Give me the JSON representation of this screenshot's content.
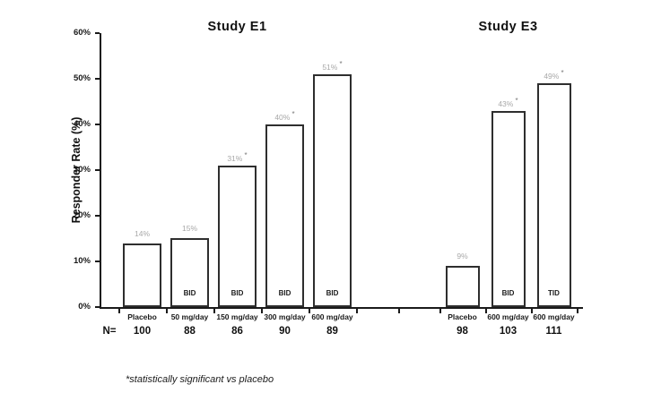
{
  "figure": {
    "ylabel": "Responder Rate (%)",
    "n_prefix": "N=",
    "footnote": "*statistically significant vs placebo"
  },
  "chart_data": {
    "type": "bar",
    "title": "",
    "ylabel": "Responder Rate (%)",
    "xlabel": "",
    "ylim": [
      0,
      60
    ],
    "ytick_step": 10,
    "ytick_suffix": "%",
    "grid": false,
    "legend": "none",
    "bar_fill": "#ffffff",
    "bar_border": "#2e2e2e",
    "value_label_color": "#a8a8a8",
    "sig_marker": "*",
    "footnote": "*statistically significant vs placebo",
    "groups": [
      {
        "title": "Study E1",
        "bars": [
          {
            "category": "Placebo",
            "value": 14,
            "n": 100,
            "schedule": "",
            "significant": false
          },
          {
            "category": "50 mg/day",
            "value": 15,
            "n": 88,
            "schedule": "BID",
            "significant": false
          },
          {
            "category": "150 mg/day",
            "value": 31,
            "n": 86,
            "schedule": "BID",
            "significant": true
          },
          {
            "category": "300 mg/day",
            "value": 40,
            "n": 90,
            "schedule": "BID",
            "significant": true
          },
          {
            "category": "600 mg/day",
            "value": 51,
            "n": 89,
            "schedule": "BID",
            "significant": true
          }
        ]
      },
      {
        "title": "Study E3",
        "bars": [
          {
            "category": "Placebo",
            "value": 9,
            "n": 98,
            "schedule": "",
            "significant": false
          },
          {
            "category": "600 mg/day",
            "value": 43,
            "n": 103,
            "schedule": "BID",
            "significant": true
          },
          {
            "category": "600 mg/day",
            "value": 49,
            "n": 111,
            "schedule": "TID",
            "significant": true
          }
        ]
      }
    ]
  }
}
